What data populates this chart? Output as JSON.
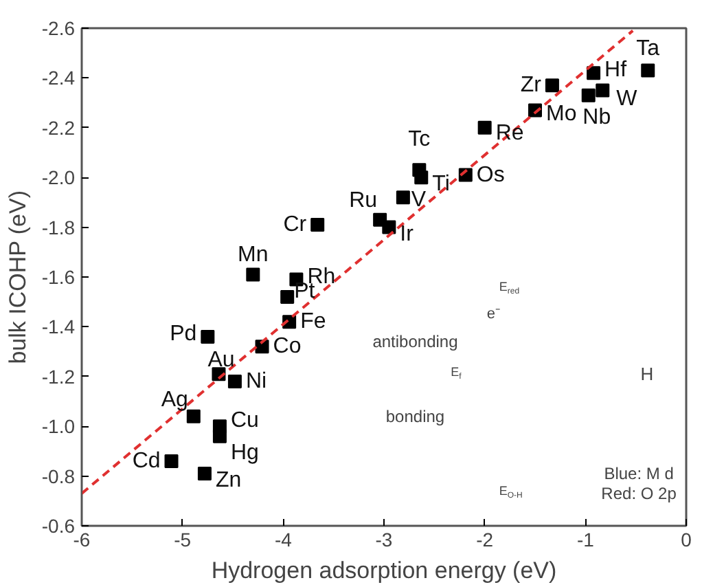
{
  "chart_data": {
    "type": "scatter",
    "xlabel": "Hydrogen adsorption energy (eV)",
    "ylabel": "bulk ICOHP (eV)",
    "xlim": [
      -6,
      0
    ],
    "ylim": [
      -0.6,
      -2.6
    ],
    "xticks": [
      -6,
      -5,
      -4,
      -3,
      -2,
      -1,
      0
    ],
    "yticks": [
      -2.6,
      -2.4,
      -2.2,
      {
        "value": -2,
        "label": "-2.0"
      },
      -1.8,
      -1.6,
      -1.4,
      -1.2,
      {
        "value": -1,
        "label": "-1.0"
      },
      -0.8,
      -0.6
    ],
    "grid": false,
    "series": [
      {
        "marker": "square",
        "color": "#000000",
        "x": [
          -5.11,
          -4.78,
          -4.89,
          -4.63,
          -4.63,
          -4.64,
          -4.48,
          -4.75,
          -4.21,
          -3.94,
          -3.96,
          -3.87,
          -4.3,
          -3.66,
          -3.04,
          -2.95,
          -2.81,
          -2.65,
          -2.63,
          -2.19,
          -2.0,
          -1.5,
          -1.33,
          -0.97,
          -0.83,
          -0.92,
          -0.38
        ],
        "values": [
          -0.86,
          -0.81,
          -1.04,
          -1.0,
          -0.96,
          -1.21,
          -1.18,
          -1.36,
          -1.32,
          -1.42,
          -1.52,
          -1.59,
          -1.61,
          -1.81,
          -1.83,
          -1.8,
          -1.92,
          -2.03,
          -2.0,
          -2.01,
          -2.2,
          -2.27,
          -2.37,
          -2.33,
          -2.35,
          -2.42,
          -2.43
        ]
      },
      {
        "type": "line",
        "color": "#e03030",
        "line_style": "dashed",
        "x": [
          -6,
          -0.53
        ],
        "values": [
          -0.73,
          -2.59
        ]
      }
    ],
    "annotations": [
      {
        "text": "Cd",
        "x": -5.11,
        "y": -0.86
      },
      {
        "text": "Zn",
        "x": -4.78,
        "y": -0.81
      },
      {
        "text": "Ag",
        "x": -4.89,
        "y": -1.04
      },
      {
        "text": "Cu",
        "x": -4.63,
        "y": -1.0
      },
      {
        "text": "Hg",
        "x": -4.63,
        "y": -0.96
      },
      {
        "text": "Au",
        "x": -4.64,
        "y": -1.21
      },
      {
        "text": "Ni",
        "x": -4.48,
        "y": -1.18
      },
      {
        "text": "Pd",
        "x": -4.75,
        "y": -1.36
      },
      {
        "text": "Co",
        "x": -4.21,
        "y": -1.32
      },
      {
        "text": "Fe",
        "x": -3.94,
        "y": -1.42
      },
      {
        "text": "Pt",
        "x": -3.96,
        "y": -1.52
      },
      {
        "text": "Rh",
        "x": -3.87,
        "y": -1.59
      },
      {
        "text": "Mn",
        "x": -4.3,
        "y": -1.61
      },
      {
        "text": "Cr",
        "x": -3.66,
        "y": -1.81
      },
      {
        "text": "Ru",
        "x": -3.04,
        "y": -1.83
      },
      {
        "text": "Ir",
        "x": -2.95,
        "y": -1.8
      },
      {
        "text": "V",
        "x": -2.81,
        "y": -1.92
      },
      {
        "text": "Tc",
        "x": -2.65,
        "y": -2.03
      },
      {
        "text": "Ti",
        "x": -2.63,
        "y": -2.0
      },
      {
        "text": "Os",
        "x": -2.19,
        "y": -2.01
      },
      {
        "text": "Re",
        "x": -2.0,
        "y": -2.2
      },
      {
        "text": "Mo",
        "x": -1.5,
        "y": -2.27
      },
      {
        "text": "Zr",
        "x": -1.33,
        "y": -2.37
      },
      {
        "text": "Nb",
        "x": -0.97,
        "y": -2.33
      },
      {
        "text": "W",
        "x": -0.83,
        "y": -2.35
      },
      {
        "text": "Hf",
        "x": -0.92,
        "y": -2.42
      },
      {
        "text": "Ta",
        "x": -0.38,
        "y": -2.43
      },
      "antibonding",
      "bonding",
      "E$_{red}$",
      "e⁻",
      "E$_{f}$",
      "E$_{O-H}$",
      "H",
      "Blue: M d",
      "Red: O 2p"
    ]
  }
}
